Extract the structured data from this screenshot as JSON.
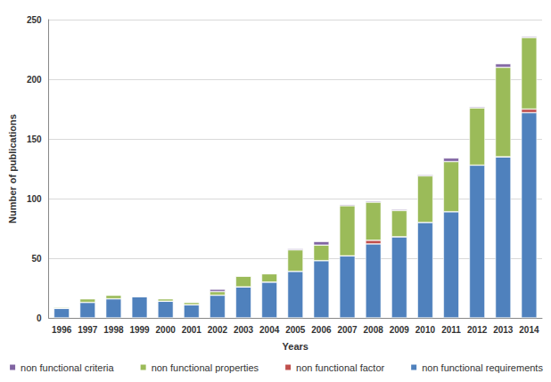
{
  "chart_data": {
    "type": "bar",
    "categories": [
      "1996",
      "1997",
      "1998",
      "1999",
      "2000",
      "2001",
      "2002",
      "2003",
      "2004",
      "2005",
      "2006",
      "2007",
      "2008",
      "2009",
      "2010",
      "2011",
      "2012",
      "2013",
      "2014"
    ],
    "x_label": "Years",
    "y_label": "Number of publications",
    "ylim": [
      0,
      250
    ],
    "yticks": [
      0,
      50,
      100,
      150,
      200,
      250
    ],
    "grid": true,
    "stacked": true,
    "legend": "bottom",
    "series": [
      {
        "name": "non functional requirements",
        "color": "#4f81bd",
        "values": [
          8,
          13,
          16,
          18,
          14,
          11,
          19,
          26,
          30,
          39,
          48,
          52,
          62,
          68,
          80,
          89,
          128,
          135,
          172
        ]
      },
      {
        "name": "non functional factor",
        "color": "#c0504d",
        "values": [
          0,
          0,
          0,
          0,
          0,
          0,
          0,
          0,
          0,
          0,
          0,
          0,
          3,
          0,
          0,
          0,
          0,
          0,
          3
        ]
      },
      {
        "name": "non functional properties",
        "color": "#9bbb59",
        "values": [
          1,
          3,
          3,
          0,
          2,
          2,
          3,
          9,
          7,
          18,
          13,
          42,
          32,
          22,
          39,
          42,
          48,
          75,
          60
        ]
      },
      {
        "name": "non functional criteria",
        "color": "#8064a2",
        "values": [
          0,
          0,
          0,
          0,
          0,
          0,
          2,
          0,
          0,
          1,
          3,
          1,
          1,
          1,
          1,
          3,
          1,
          3,
          1
        ]
      }
    ]
  }
}
